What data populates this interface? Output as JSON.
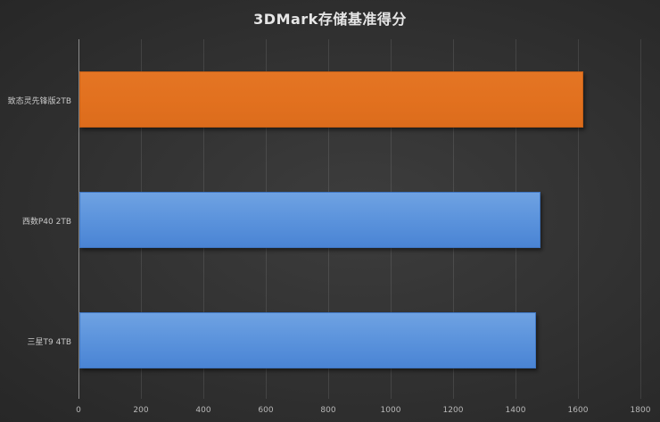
{
  "chart_data": {
    "type": "bar",
    "orientation": "horizontal",
    "title": "3DMark存储基准得分",
    "categories": [
      "致态灵先锋版2TB",
      "西数P40 2TB",
      "三星T9 4TB"
    ],
    "values": [
      1613,
      1476,
      1463
    ],
    "bar_colors": [
      "#e2711f",
      "#5b93dc",
      "#5b93dc"
    ],
    "xlabel": "",
    "ylabel": "",
    "xlim": [
      0,
      1800
    ],
    "x_ticks": [
      0,
      200,
      400,
      600,
      800,
      1000,
      1200,
      1400,
      1600,
      1800
    ],
    "grid": "vertical",
    "legend": "none"
  },
  "ticks": {
    "t0": "0",
    "t1": "200",
    "t2": "400",
    "t3": "600",
    "t4": "800",
    "t5": "1000",
    "t6": "1200",
    "t7": "1400",
    "t8": "1600",
    "t9": "1800"
  },
  "colors": {
    "highlight": "#e2711f",
    "default": "#5b93dc",
    "background": "#333333"
  }
}
